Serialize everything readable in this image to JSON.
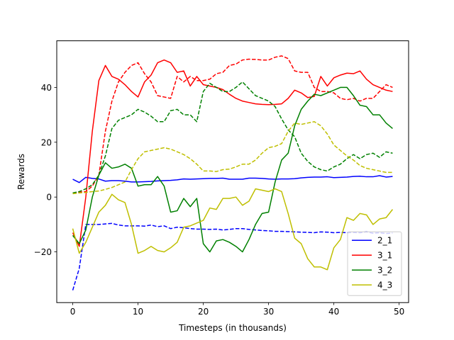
{
  "chart_data": {
    "type": "line",
    "title": "",
    "xlabel": "Timesteps (in thousands)",
    "ylabel": "Rewards",
    "xlim": [
      -2.45,
      51.45
    ],
    "ylim": [
      -38.5,
      57
    ],
    "xticks": [
      0,
      10,
      20,
      30,
      40,
      50
    ],
    "yticks": [
      -20,
      0,
      20,
      40
    ],
    "grid": false,
    "legend_position": "lower right",
    "x": [
      0,
      1,
      2,
      3,
      4,
      5,
      6,
      7,
      8,
      9,
      10,
      11,
      12,
      13,
      14,
      15,
      16,
      17,
      18,
      19,
      20,
      21,
      22,
      23,
      24,
      25,
      26,
      27,
      28,
      29,
      30,
      31,
      32,
      33,
      34,
      35,
      36,
      37,
      38,
      39,
      40,
      41,
      42,
      43,
      44,
      45,
      46,
      47,
      48,
      49
    ],
    "series": [
      {
        "name": "2_1",
        "color": "#0000ff",
        "style": "solid",
        "values": [
          6.5,
          5.3,
          7.2,
          6.8,
          6.6,
          5.8,
          6.0,
          6.0,
          5.8,
          5.5,
          5.5,
          5.6,
          5.7,
          5.9,
          6.0,
          6.1,
          6.3,
          6.6,
          6.5,
          6.6,
          6.7,
          6.8,
          6.8,
          6.9,
          6.5,
          6.5,
          6.5,
          6.9,
          6.9,
          6.8,
          6.6,
          6.5,
          6.6,
          6.6,
          6.7,
          7.0,
          7.2,
          7.3,
          7.3,
          7.4,
          7.1,
          7.2,
          7.3,
          7.5,
          7.6,
          7.4,
          7.4,
          7.8,
          7.3,
          7.5
        ]
      },
      {
        "name": "",
        "color": "#0000ff",
        "style": "dashed",
        "values": [
          -34,
          -26,
          -10,
          -10,
          -10,
          -9.8,
          -9.6,
          -10.2,
          -10.5,
          -10.5,
          -10.5,
          -10.6,
          -10.2,
          -10.8,
          -10.5,
          -11.5,
          -11.0,
          -11.2,
          -11.5,
          -11.7,
          -11.7,
          -11.8,
          -11.7,
          -12.0,
          -11.8,
          -11.5,
          -11.5,
          -11.8,
          -12.0,
          -12.2,
          -12.3,
          -12.5,
          -12.5,
          -12.6,
          -12.7,
          -12.8,
          -12.9,
          -13.0,
          -12.7,
          -12.8,
          -13.0,
          -12.9,
          -13.0,
          -12.9,
          -13.0,
          -12.7,
          -13.2,
          -13.0,
          -13.3,
          -13.1
        ]
      },
      {
        "name": "3_1",
        "color": "#ff0000",
        "style": "solid",
        "values": [
          -13,
          -18,
          0,
          24,
          42.5,
          48,
          44,
          43,
          41,
          38.5,
          36.5,
          42,
          44.5,
          49,
          50,
          49,
          45.5,
          46,
          40.5,
          44,
          41,
          40.5,
          40,
          39.2,
          37.5,
          36,
          35,
          34.5,
          34,
          33.8,
          33.7,
          33.8,
          34,
          36,
          39,
          38,
          36.3,
          36.7,
          44,
          40.5,
          43.5,
          44.5,
          45.2,
          45,
          46,
          43,
          41,
          40,
          39,
          38.5
        ]
      },
      {
        "name": "",
        "color": "#ff0000",
        "style": "dashed",
        "values": [
          1.5,
          1.8,
          2.0,
          4.0,
          8.0,
          24,
          35,
          42,
          45.5,
          48,
          49,
          45,
          42,
          37,
          36.5,
          36,
          44,
          42,
          44,
          42.5,
          42.5,
          43,
          45,
          45.5,
          48,
          48.5,
          50,
          50.3,
          50.2,
          50,
          50,
          51,
          51.5,
          50.5,
          46,
          45.5,
          45.5,
          40,
          38.5,
          38.5,
          38,
          36,
          35.5,
          36,
          35,
          36,
          36,
          38.5,
          41,
          40
        ]
      },
      {
        "name": "3_2",
        "color": "#008000",
        "style": "solid",
        "values": [
          -14,
          -17,
          -12,
          0,
          8,
          12.5,
          10.5,
          11,
          12,
          10.5,
          4,
          4.5,
          4.5,
          7.5,
          4,
          -5.5,
          -5,
          -0.5,
          -3.5,
          -0.5,
          -17,
          -20,
          -16,
          -15.5,
          -16.5,
          -18,
          -20,
          -15.5,
          -10,
          -6,
          -5.5,
          5.5,
          13.5,
          16,
          26,
          32,
          35,
          37.5,
          37,
          38,
          39,
          40,
          40,
          37,
          33.5,
          33,
          30,
          30,
          27,
          25
        ]
      },
      {
        "name": "",
        "color": "#008000",
        "style": "dashed",
        "values": [
          1.5,
          2,
          3,
          4.5,
          8,
          15,
          25,
          28,
          29,
          30,
          32,
          31,
          29.5,
          27.5,
          27.5,
          31.5,
          32,
          30,
          30,
          27.5,
          38.5,
          41.5,
          40,
          38.5,
          38.5,
          40,
          42,
          39.5,
          37,
          36,
          35,
          33,
          28.5,
          24.5,
          22,
          16,
          13,
          11,
          10,
          9.5,
          11,
          12,
          14,
          15.5,
          14,
          15.5,
          16,
          14.5,
          16.5,
          16
        ]
      },
      {
        "name": "4_3",
        "color": "#bfbf00",
        "style": "solid",
        "values": [
          -11.5,
          -20.5,
          -16.5,
          -11,
          -5.5,
          -3,
          1,
          -1,
          -2,
          -10,
          -20.5,
          -19.5,
          -18,
          -19.5,
          -20,
          -18.5,
          -16.5,
          -11,
          -10.5,
          -9.5,
          -8.5,
          -4,
          -4.5,
          -0.5,
          -0.5,
          0,
          -3,
          -1.5,
          3,
          2.5,
          2,
          3,
          2,
          -6,
          -15,
          -17,
          -22.5,
          -25.5,
          -25.5,
          -26.5,
          -18.5,
          -15.5,
          -7.5,
          -8.5,
          -6,
          -6.5,
          -10,
          -8,
          -7.5,
          -4.5
        ]
      },
      {
        "name": "",
        "color": "#bfbf00",
        "style": "dashed",
        "values": [
          1.2,
          1.5,
          1.7,
          2.0,
          2.2,
          2.8,
          3.5,
          4.5,
          5.5,
          10,
          14,
          16.5,
          17,
          17.5,
          18,
          17.5,
          16.5,
          15.5,
          14,
          12,
          9.5,
          9.5,
          9.3,
          10,
          10.2,
          11,
          12,
          12,
          13.5,
          16,
          18,
          18.5,
          19.5,
          24,
          27,
          26.5,
          27,
          27.5,
          26,
          23,
          19,
          17,
          15,
          13.5,
          11.5,
          10.5,
          10,
          9.5,
          9,
          9
        ]
      }
    ]
  }
}
